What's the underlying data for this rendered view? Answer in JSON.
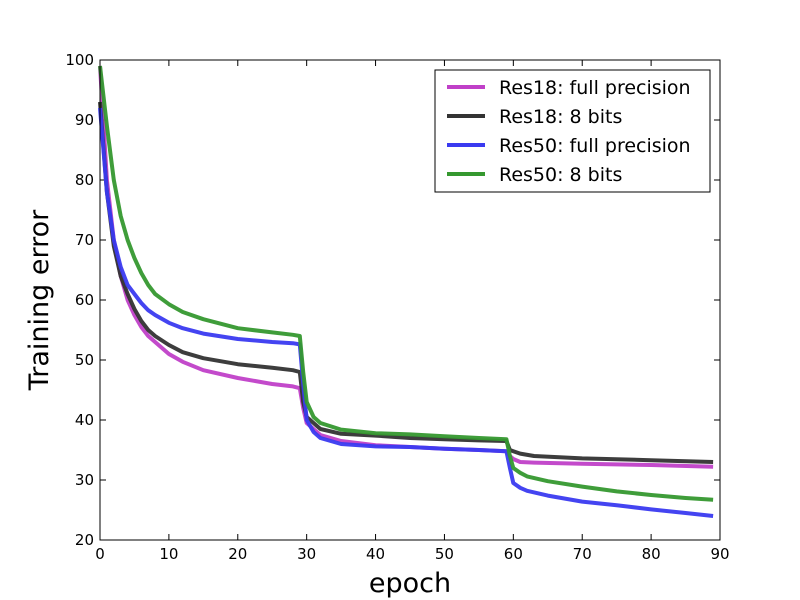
{
  "chart_data": {
    "type": "line",
    "title": "",
    "xlabel": "epoch",
    "ylabel": "Training error",
    "xlim": [
      0,
      90
    ],
    "ylim": [
      20,
      100
    ],
    "xticks": [
      0,
      10,
      20,
      30,
      40,
      50,
      60,
      70,
      80,
      90
    ],
    "yticks": [
      20,
      30,
      40,
      50,
      60,
      70,
      80,
      90,
      100
    ],
    "grid": false,
    "legend_position": "top-right",
    "series": [
      {
        "name": "Res18: full precision",
        "color": "#c040c8",
        "x": [
          0,
          1,
          2,
          3,
          4,
          5,
          6,
          7,
          8,
          10,
          12,
          15,
          20,
          25,
          28,
          29,
          29.5,
          30,
          32,
          35,
          40,
          45,
          50,
          55,
          59,
          59.5,
          60,
          61,
          63,
          70,
          80,
          89
        ],
        "y": [
          99,
          80,
          70,
          64,
          60,
          57.5,
          55.5,
          54,
          53,
          51,
          49.7,
          48.3,
          47,
          46,
          45.6,
          45.3,
          42,
          39.5,
          37.5,
          36.5,
          35.8,
          35.5,
          35.2,
          35,
          34.8,
          34,
          33.5,
          33,
          32.9,
          32.7,
          32.5,
          32.2
        ]
      },
      {
        "name": "Res18: 8 bits",
        "color": "#333333",
        "x": [
          0,
          1,
          2,
          3,
          4,
          5,
          6,
          7,
          8,
          10,
          12,
          15,
          20,
          25,
          28,
          29,
          29.5,
          30,
          32,
          35,
          40,
          45,
          50,
          55,
          59,
          59.5,
          60,
          61,
          63,
          70,
          80,
          89
        ],
        "y": [
          93,
          78,
          69,
          64,
          61,
          58.5,
          56.5,
          55,
          54,
          52.5,
          51.3,
          50.3,
          49.3,
          48.7,
          48.3,
          48,
          43,
          40.5,
          38.5,
          37.7,
          37.4,
          37,
          36.8,
          36.6,
          36.5,
          35,
          34.8,
          34.4,
          34,
          33.6,
          33.3,
          33
        ]
      },
      {
        "name": "Res50: full precision",
        "color": "#3a3af0",
        "x": [
          0,
          1,
          2,
          3,
          4,
          5,
          6,
          7,
          8,
          10,
          12,
          15,
          20,
          25,
          28,
          29,
          29.5,
          30,
          31,
          32,
          35,
          40,
          45,
          50,
          55,
          59,
          59.5,
          60,
          61,
          62,
          65,
          70,
          75,
          80,
          85,
          89
        ],
        "y": [
          92,
          78,
          70,
          65.5,
          62.5,
          61,
          59.5,
          58.3,
          57.5,
          56.2,
          55.3,
          54.4,
          53.5,
          53,
          52.8,
          52.6,
          46,
          40,
          38,
          37,
          36,
          35.6,
          35.5,
          35.2,
          35,
          34.8,
          32,
          29.5,
          28.7,
          28.2,
          27.4,
          26.4,
          25.8,
          25.1,
          24.5,
          24
        ]
      },
      {
        "name": "Res50: 8 bits",
        "color": "#35982f",
        "x": [
          0,
          1,
          2,
          3,
          4,
          5,
          6,
          7,
          8,
          10,
          12,
          15,
          20,
          25,
          28,
          29,
          29.5,
          30,
          31,
          32,
          35,
          40,
          45,
          50,
          55,
          59,
          59.5,
          60,
          61,
          62,
          65,
          70,
          75,
          80,
          85,
          89
        ],
        "y": [
          99,
          89,
          80,
          74,
          70,
          67,
          64.5,
          62.5,
          61,
          59.3,
          58,
          56.8,
          55.3,
          54.6,
          54.2,
          54,
          48,
          43,
          40.5,
          39.5,
          38.4,
          37.8,
          37.6,
          37.3,
          37,
          36.8,
          34,
          32,
          31.2,
          30.6,
          29.8,
          28.9,
          28.1,
          27.5,
          27,
          26.7
        ]
      }
    ]
  }
}
